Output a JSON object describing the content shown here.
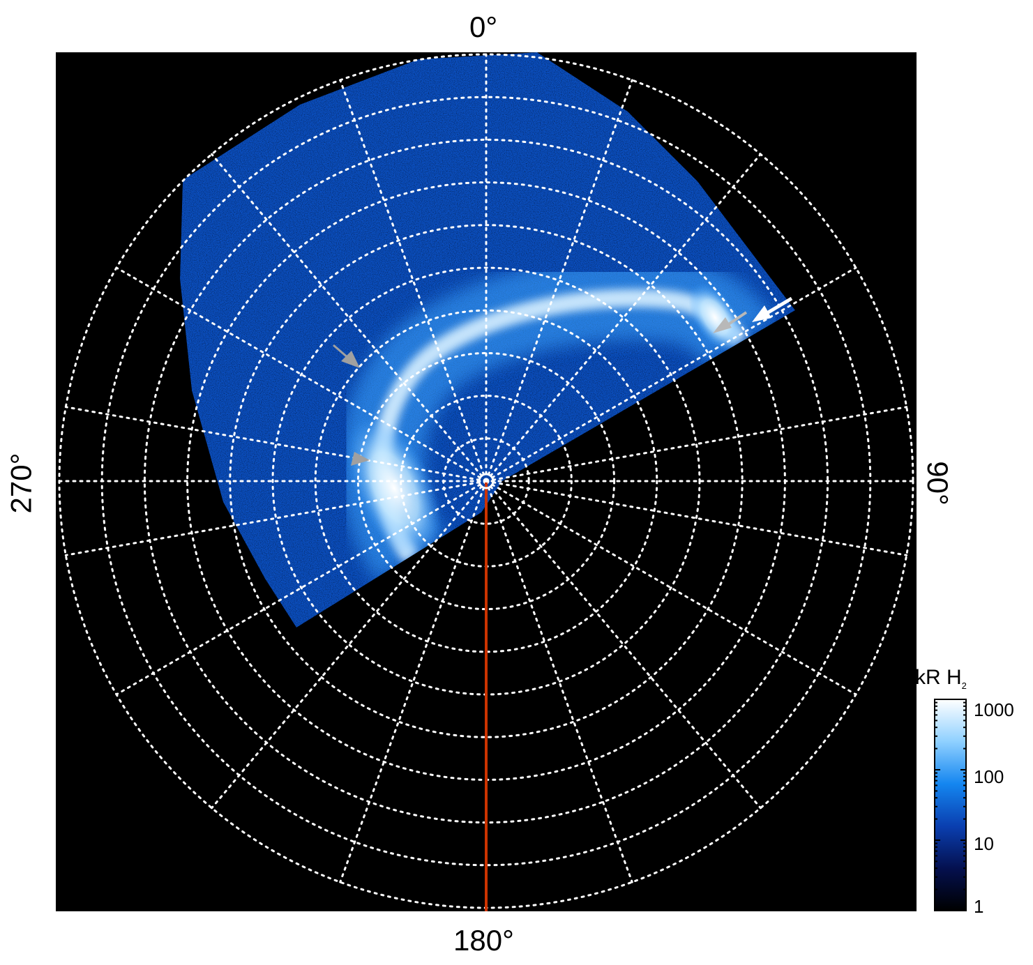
{
  "chart_data": {
    "type": "polar-image",
    "angle_labels": {
      "top": "0°",
      "right": "90°",
      "bottom": "180°",
      "left": "270°"
    },
    "angular_gridlines_step_deg": 20,
    "radial_rings": 10,
    "grid": true,
    "grid_style": "white dotted",
    "colorbar": {
      "title": "kR H",
      "title_subscript": "2",
      "scale": "log",
      "range": [
        1,
        1000
      ],
      "ticks": [
        "1000",
        "100",
        "10",
        "1"
      ],
      "placement": "right-bottom",
      "colors": [
        "#000000",
        "#04104f",
        "#0a3fb0",
        "#1486f0",
        "#8fd0ff",
        "#ffffff"
      ]
    },
    "reference_line": {
      "angle_deg": 180,
      "color": "#cc3300"
    },
    "annotations": [
      {
        "type": "arrow",
        "color": "#a0a0a0"
      },
      {
        "type": "arrow",
        "color": "#a0a0a0"
      },
      {
        "type": "arrow",
        "color": "#b8b8b8"
      },
      {
        "type": "arrow",
        "color": "#ffffff"
      }
    ]
  }
}
